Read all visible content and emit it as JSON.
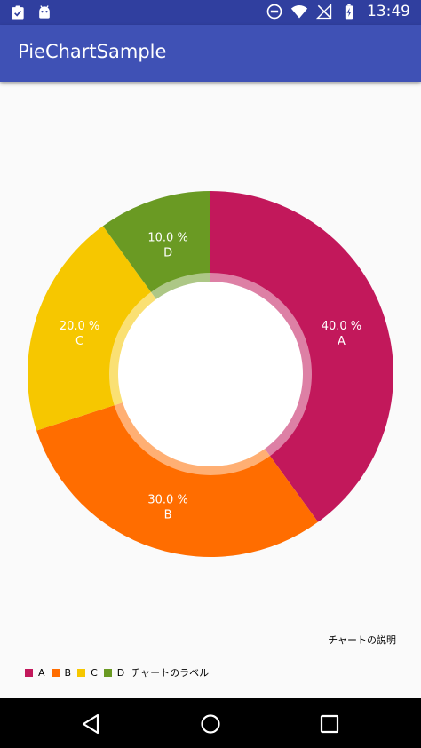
{
  "status_bar": {
    "time": "13:49",
    "left_icons": [
      "clipboard-check-icon",
      "android-icon"
    ],
    "right_icons": [
      "do-not-disturb-icon",
      "wifi-icon",
      "no-signal-icon",
      "battery-charging-icon"
    ]
  },
  "app_bar": {
    "title": "PieChartSample",
    "color": "#3f51b5"
  },
  "chart_data": {
    "type": "pie",
    "donut": true,
    "categories": [
      "A",
      "B",
      "C",
      "D"
    ],
    "values": [
      40.0,
      30.0,
      20.0,
      10.0
    ],
    "value_labels": [
      "40.0 %",
      "30.0 %",
      "20.0 %",
      "10.0 %"
    ],
    "colors": [
      "#c2185b",
      "#ff6d00",
      "#f6c700",
      "#6a9a23"
    ],
    "description": "チャートの説明",
    "legend_label": "チャートのラベル",
    "legend_position": "bottom-left"
  },
  "nav_bar": {
    "icons": [
      "back-icon",
      "home-icon",
      "recents-icon"
    ]
  }
}
